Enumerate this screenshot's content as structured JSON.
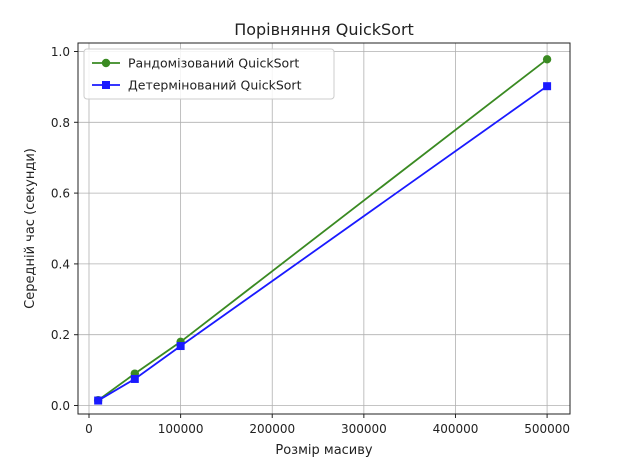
{
  "chart_data": {
    "type": "line",
    "title": "Порівняння QuickSort",
    "xlabel": "Розмір масиву",
    "ylabel": "Середній час (секунди)",
    "xlim": [
      -12000,
      525000
    ],
    "ylim": [
      -0.024,
      1.024
    ],
    "x_ticks": [
      0,
      100000,
      200000,
      300000,
      400000,
      500000
    ],
    "y_ticks": [
      0.0,
      0.2,
      0.4,
      0.6,
      0.8,
      1.0
    ],
    "x_tick_labels": [
      "0",
      "100000",
      "200000",
      "300000",
      "400000",
      "500000"
    ],
    "y_tick_labels": [
      "0.0",
      "0.2",
      "0.4",
      "0.6",
      "0.8",
      "1.0"
    ],
    "grid": true,
    "legend_position": "top-left",
    "x": [
      10000,
      50000,
      100000,
      500000
    ],
    "series": [
      {
        "name": "Рандомізований QuickSort",
        "values": [
          0.015,
          0.09,
          0.18,
          0.978
        ],
        "color": "#3a8a22",
        "marker": "circle"
      },
      {
        "name": "Детермінований QuickSort",
        "values": [
          0.014,
          0.075,
          0.168,
          0.902
        ],
        "color": "#1a1aff",
        "marker": "square"
      }
    ]
  }
}
